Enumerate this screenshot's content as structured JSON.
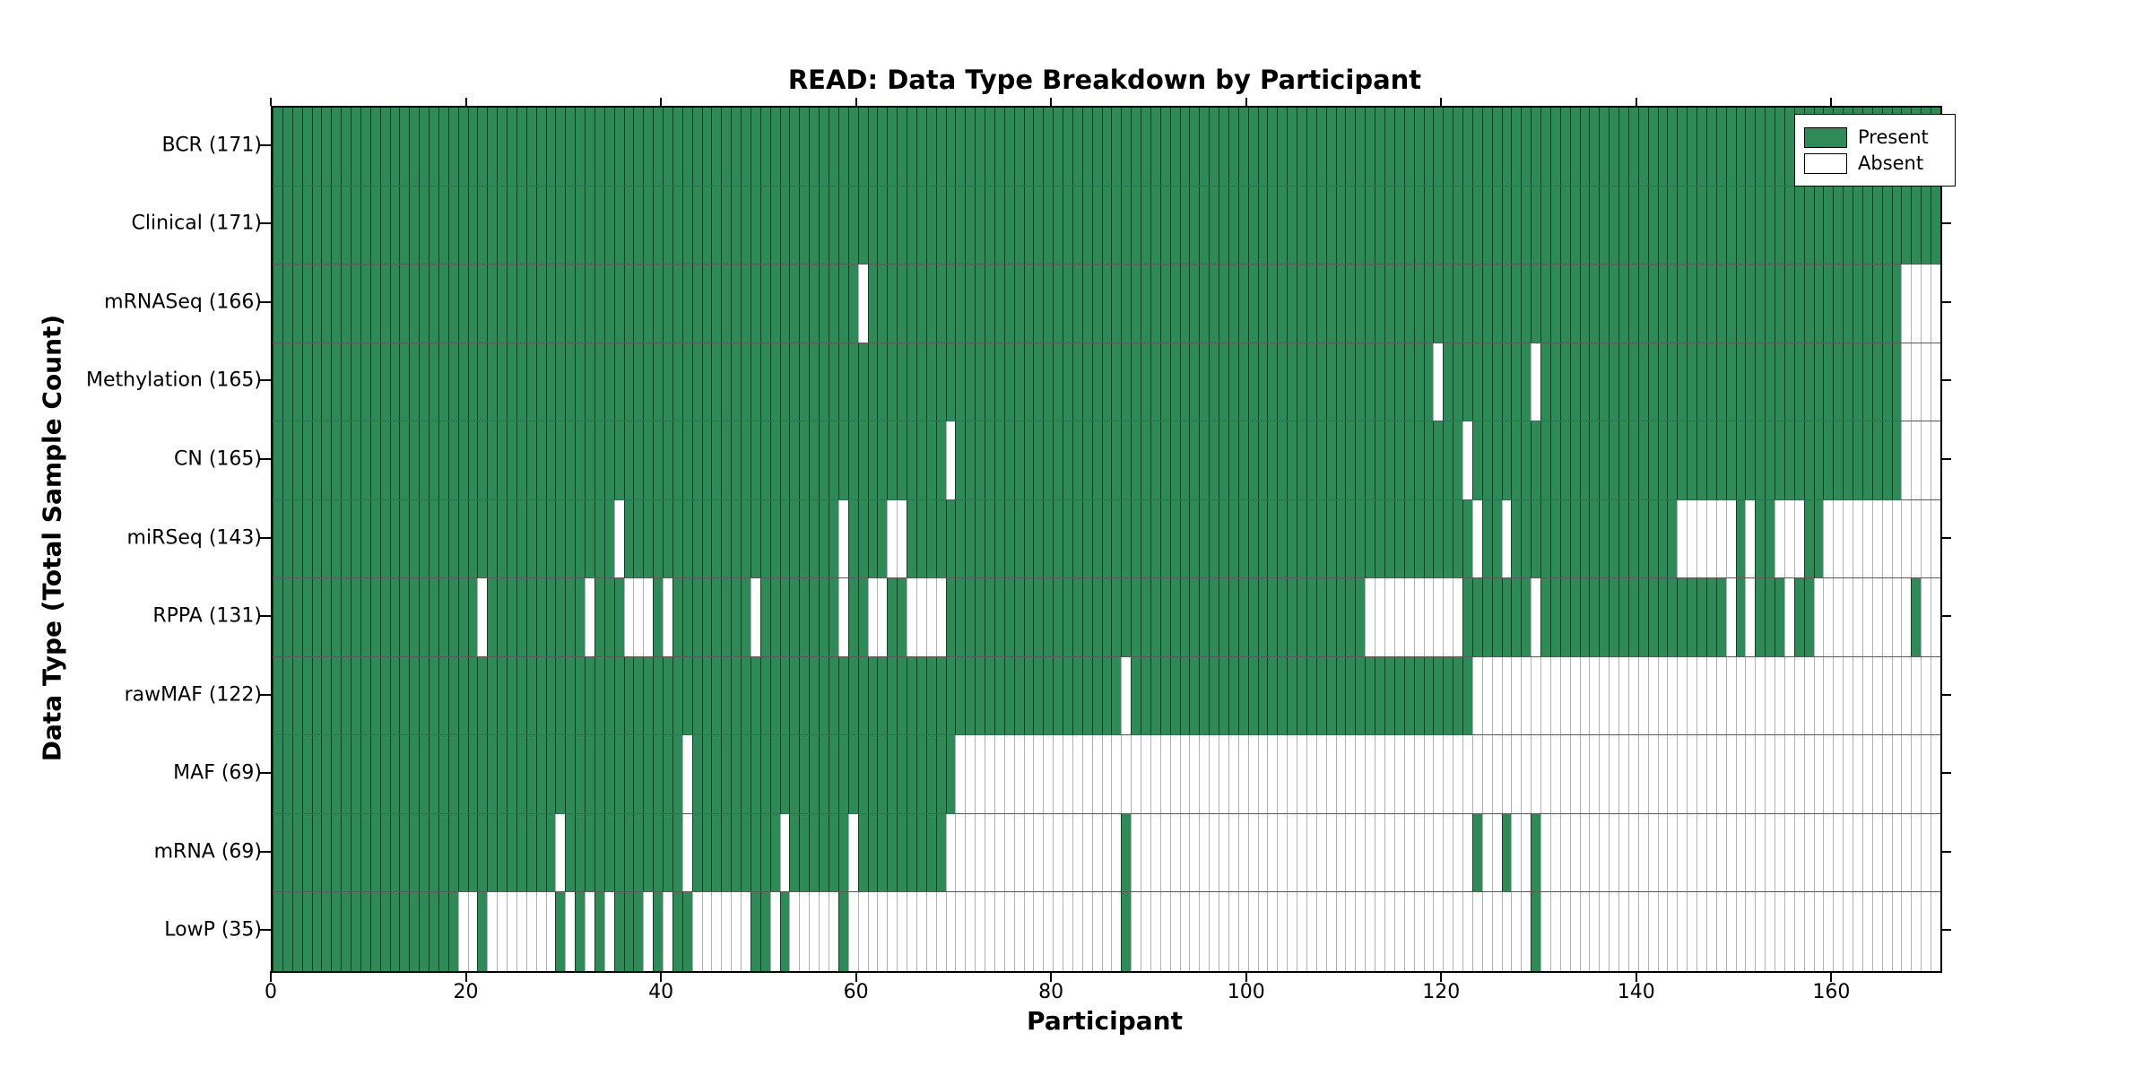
{
  "title": "READ: Data Type Breakdown by Participant",
  "xlabel": "Participant",
  "ylabel": "Data Type (Total Sample Count)",
  "legend": {
    "present": "Present",
    "absent": "Absent"
  },
  "colors": {
    "present_fill": "#2e8b57",
    "absent_fill": "#ffffff"
  },
  "chart_data": {
    "type": "heatmap",
    "title": "READ: Data Type Breakdown by Participant",
    "xlabel": "Participant",
    "ylabel": "Data Type (Total Sample Count)",
    "n_participants": 171,
    "x_tick_values": [
      0,
      20,
      40,
      60,
      80,
      100,
      120,
      140,
      160
    ],
    "xlim": [
      0,
      171
    ],
    "grid": false,
    "legend_position": "upper right inside plot",
    "cell_states": [
      "present",
      "absent"
    ],
    "rows": [
      {
        "label": "BCR (171)",
        "data_type": "BCR",
        "present_count": 171,
        "absent_ranges": []
      },
      {
        "label": "Clinical (171)",
        "data_type": "Clinical",
        "present_count": 171,
        "absent_ranges": []
      },
      {
        "label": "mRNASeq (166)",
        "data_type": "mRNASeq",
        "present_count": 166,
        "absent_ranges": [
          [
            60,
            60
          ],
          [
            167,
            170
          ]
        ]
      },
      {
        "label": "Methylation (165)",
        "data_type": "Methylation",
        "present_count": 165,
        "absent_ranges": [
          [
            119,
            119
          ],
          [
            129,
            129
          ],
          [
            167,
            170
          ]
        ]
      },
      {
        "label": "CN (165)",
        "data_type": "CN",
        "present_count": 165,
        "absent_ranges": [
          [
            69,
            69
          ],
          [
            122,
            122
          ],
          [
            167,
            170
          ]
        ]
      },
      {
        "label": "miRSeq (143)",
        "data_type": "miRSeq",
        "present_count": 143,
        "absent_ranges": [
          [
            35,
            35
          ],
          [
            58,
            58
          ],
          [
            63,
            64
          ],
          [
            123,
            123
          ],
          [
            126,
            126
          ],
          [
            144,
            149
          ],
          [
            151,
            151
          ],
          [
            154,
            156
          ],
          [
            159,
            170
          ]
        ]
      },
      {
        "label": "RPPA (131)",
        "data_type": "RPPA",
        "present_count": 131,
        "absent_ranges": [
          [
            21,
            21
          ],
          [
            32,
            32
          ],
          [
            36,
            38
          ],
          [
            40,
            40
          ],
          [
            49,
            49
          ],
          [
            58,
            58
          ],
          [
            61,
            62
          ],
          [
            65,
            68
          ],
          [
            112,
            121
          ],
          [
            129,
            129
          ],
          [
            149,
            149
          ],
          [
            151,
            151
          ],
          [
            155,
            155
          ],
          [
            158,
            167
          ],
          [
            169,
            170
          ]
        ]
      },
      {
        "label": "rawMAF (122)",
        "data_type": "rawMAF",
        "present_count": 122,
        "absent_ranges": [
          [
            87,
            87
          ],
          [
            123,
            170
          ]
        ]
      },
      {
        "label": "MAF (69)",
        "data_type": "MAF",
        "present_count": 69,
        "absent_ranges": [
          [
            42,
            42
          ],
          [
            70,
            170
          ]
        ]
      },
      {
        "label": "mRNA (69)",
        "data_type": "mRNA",
        "present_count": 69,
        "absent_ranges": [
          [
            29,
            29
          ],
          [
            42,
            42
          ],
          [
            52,
            52
          ],
          [
            59,
            59
          ],
          [
            69,
            86
          ],
          [
            88,
            122
          ],
          [
            124,
            125
          ],
          [
            127,
            128
          ],
          [
            130,
            170
          ]
        ]
      },
      {
        "label": "LowP (35)",
        "data_type": "LowP",
        "present_count": 35,
        "absent_ranges": [
          [
            19,
            20
          ],
          [
            22,
            28
          ],
          [
            30,
            30
          ],
          [
            32,
            32
          ],
          [
            34,
            34
          ],
          [
            38,
            38
          ],
          [
            40,
            40
          ],
          [
            43,
            48
          ],
          [
            51,
            51
          ],
          [
            53,
            57
          ],
          [
            59,
            86
          ],
          [
            88,
            128
          ],
          [
            130,
            170
          ]
        ]
      }
    ]
  }
}
